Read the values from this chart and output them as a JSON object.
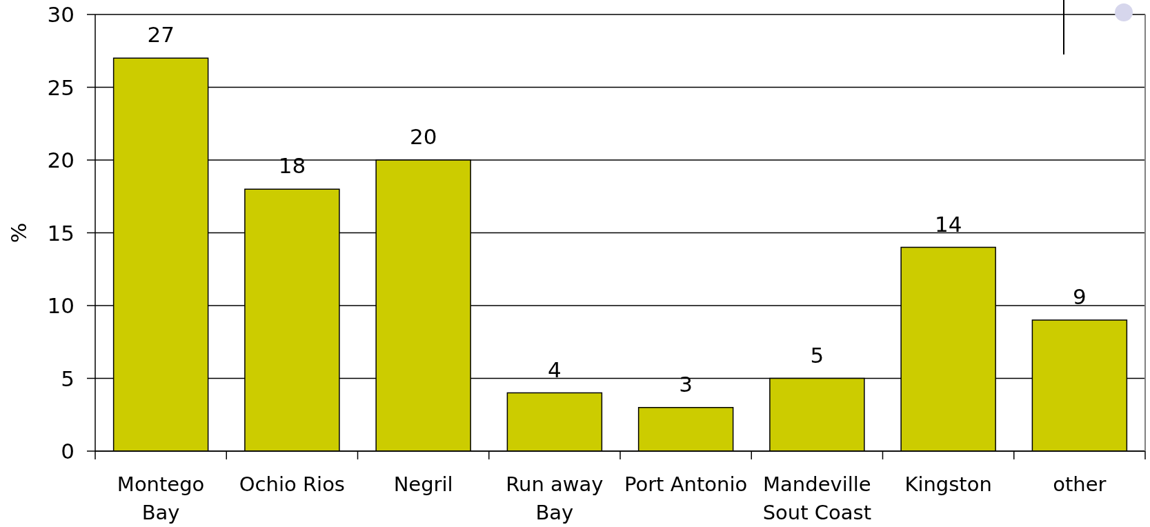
{
  "chart_data": {
    "type": "bar",
    "ylabel": "%",
    "categories": [
      "Montego Bay",
      "Ochio Rios",
      "Negril",
      "Run away Bay",
      "Port Antonio",
      "Mandeville Sout Coast",
      "Kingston",
      "other"
    ],
    "values": [
      27,
      18,
      20,
      4,
      3,
      5,
      14,
      9
    ],
    "color": "#cccc00",
    "ylim": [
      0,
      30
    ],
    "yticks": [
      0,
      5,
      10,
      15,
      20,
      25,
      30
    ],
    "grid": "y",
    "data_labels": true
  }
}
